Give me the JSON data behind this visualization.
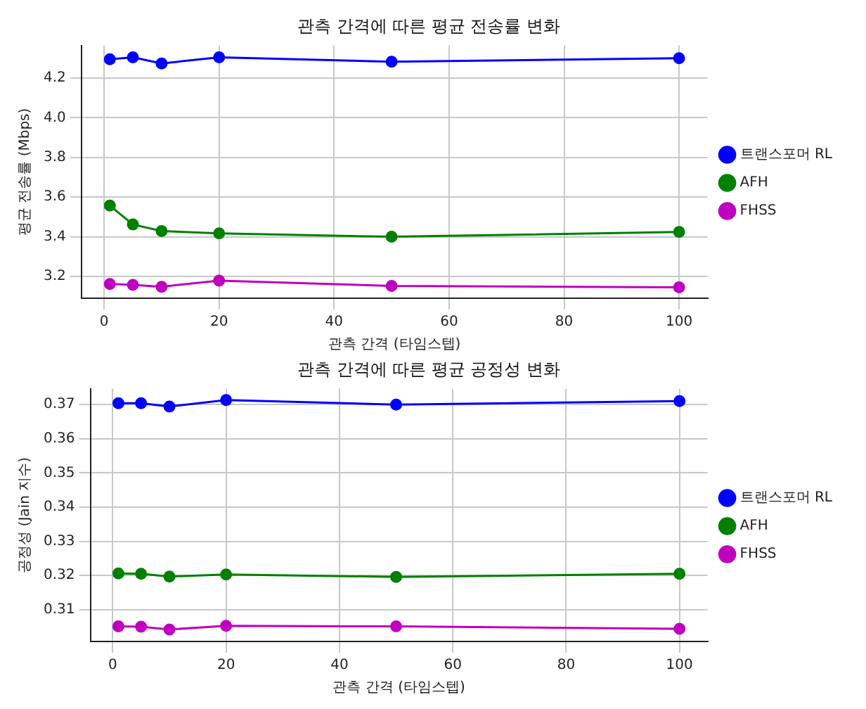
{
  "chart_data": [
    {
      "type": "line",
      "title": "관측 간격에 따른 평균 전송률 변화",
      "xlabel": "관측 간격 (타임스텝)",
      "ylabel": "평균 전송률 (Mbps)",
      "x": [
        1,
        5,
        10,
        20,
        50,
        100
      ],
      "xlim": [
        -3.95,
        104.95
      ],
      "xticks": [
        0,
        20,
        40,
        60,
        80,
        100
      ],
      "ylim": [
        3.09,
        4.364
      ],
      "yticks": [
        3.2,
        3.4,
        3.6,
        3.8,
        {
          "value": 4,
          "label": "4.0"
        },
        4.2
      ],
      "grid": true,
      "legend": "right",
      "marker": "circle",
      "series": [
        {
          "name": "트랜스포머 RL",
          "color": "#0000ff",
          "values": [
            4.295,
            4.305,
            4.274,
            4.305,
            4.283,
            4.3
          ]
        },
        {
          "name": "AFH",
          "color": "#008000",
          "values": [
            3.557,
            3.462,
            3.429,
            3.417,
            3.4,
            3.424
          ]
        },
        {
          "name": "FHSS",
          "color": "#bf00bf",
          "values": [
            3.162,
            3.157,
            3.148,
            3.179,
            3.152,
            3.145
          ]
        }
      ]
    },
    {
      "type": "line",
      "title": "관측 간격에 따른 평균 공정성 변화",
      "xlabel": "관측 간격 (타임스텝)",
      "ylabel": "공정성 (Jain 지수)",
      "x": [
        1,
        5,
        10,
        20,
        50,
        100
      ],
      "xlim": [
        -3.95,
        104.95
      ],
      "xticks": [
        0,
        20,
        40,
        60,
        80,
        100
      ],
      "ylim": [
        0.3007,
        0.3746
      ],
      "yticks": [
        0.31,
        0.32,
        0.33,
        0.34,
        0.35,
        0.36,
        0.37
      ],
      "grid": true,
      "legend": "right",
      "marker": "circle",
      "series": [
        {
          "name": "트랜스포머 RL",
          "color": "#0000ff",
          "values": [
            0.3704,
            0.3704,
            0.3694,
            0.3713,
            0.37,
            0.371
          ]
        },
        {
          "name": "AFH",
          "color": "#008000",
          "values": [
            0.3206,
            0.3205,
            0.3197,
            0.3203,
            0.3196,
            0.3205
          ]
        },
        {
          "name": "FHSS",
          "color": "#bf00bf",
          "values": [
            0.3051,
            0.305,
            0.3042,
            0.3053,
            0.3051,
            0.3044
          ]
        }
      ]
    }
  ]
}
